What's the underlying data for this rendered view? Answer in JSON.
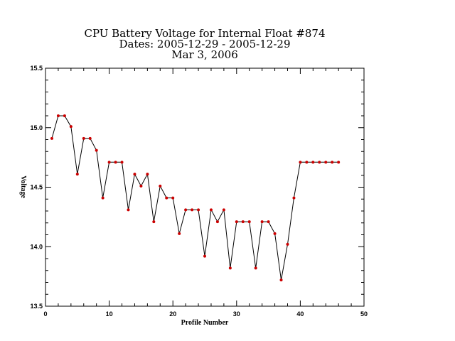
{
  "chart_data": {
    "type": "line",
    "title": "CPU Battery Voltage for Internal Float #874",
    "subtitle_dates": "Dates:  2005-12-29 -  2005-12-29",
    "subtitle_date": "Mar  3, 2006",
    "xlabel": "Profile Number",
    "ylabel": "Voltage",
    "xlim": [
      0,
      50
    ],
    "ylim": [
      13.5,
      15.5
    ],
    "x_ticks": [
      0,
      10,
      20,
      30,
      40,
      50
    ],
    "x_tick_labels": [
      "0",
      "10",
      "20",
      "30",
      "40",
      "50"
    ],
    "y_ticks": [
      13.5,
      14.0,
      14.5,
      15.0,
      15.5
    ],
    "y_tick_labels": [
      "13.5",
      "14.0",
      "14.5",
      "15.0",
      "15.5"
    ],
    "grid": false,
    "line_color": "#000000",
    "marker_color": "#cc0000",
    "series": [
      {
        "x": [
          1,
          2,
          3,
          4,
          5,
          6,
          7,
          8,
          9,
          10,
          11,
          12,
          13,
          14,
          15,
          16,
          17,
          18,
          19,
          20,
          21,
          22,
          23,
          24,
          25,
          26,
          27,
          28,
          29,
          30,
          31,
          32,
          33,
          34,
          35,
          36,
          37,
          38,
          39,
          40,
          41,
          42,
          43,
          44,
          45,
          46
        ],
        "values": [
          14.91,
          15.1,
          15.1,
          15.01,
          14.61,
          14.91,
          14.91,
          14.81,
          14.41,
          14.71,
          14.71,
          14.71,
          14.31,
          14.61,
          14.51,
          14.61,
          14.21,
          14.51,
          14.41,
          14.41,
          14.11,
          14.31,
          14.31,
          14.31,
          13.92,
          14.31,
          14.21,
          14.31,
          13.82,
          14.21,
          14.21,
          14.21,
          13.82,
          14.21,
          14.21,
          14.11,
          13.72,
          14.02,
          14.41,
          14.71,
          14.71,
          14.71,
          14.71,
          14.71,
          14.71,
          14.71
        ]
      }
    ]
  }
}
